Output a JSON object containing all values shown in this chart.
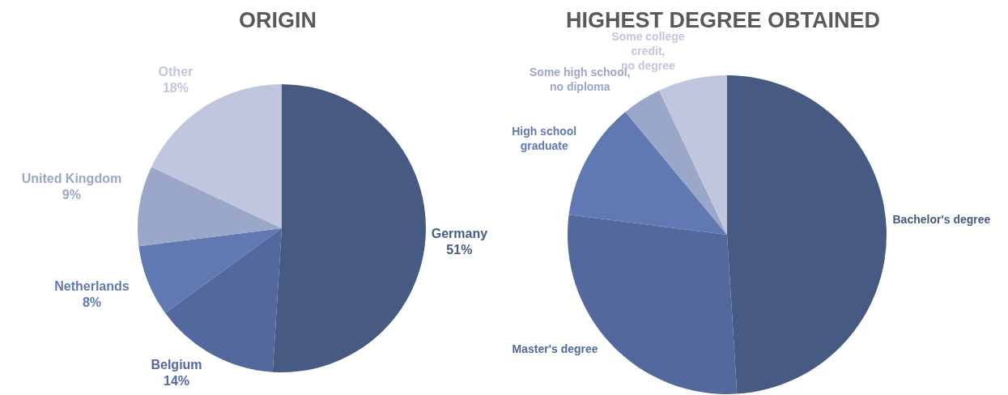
{
  "chart_data": [
    {
      "type": "pie",
      "title": "ORIGIN",
      "categories": [
        "Germany",
        "Belgium",
        "Netherlands",
        "United Kingdom",
        "Other"
      ],
      "values": [
        51,
        14,
        8,
        9,
        18
      ],
      "value_labels": [
        "51%",
        "14%",
        "8%",
        "9%",
        "18%"
      ],
      "colors": [
        "#475a82",
        "#53689d",
        "#6079b3",
        "#9aa7c9",
        "#c0c6dd"
      ]
    },
    {
      "type": "pie",
      "title": "HIGHEST DEGREE OBTAINED",
      "categories": [
        "Bachelor's degree",
        "Master's degree",
        "High school graduate",
        "Some high school, no diploma",
        "Some college credit, no degree"
      ],
      "values": [
        49,
        28,
        12,
        4,
        7
      ],
      "colors": [
        "#475a82",
        "#53689d",
        "#6079b3",
        "#9aa7c9",
        "#c0c6dd"
      ]
    }
  ]
}
